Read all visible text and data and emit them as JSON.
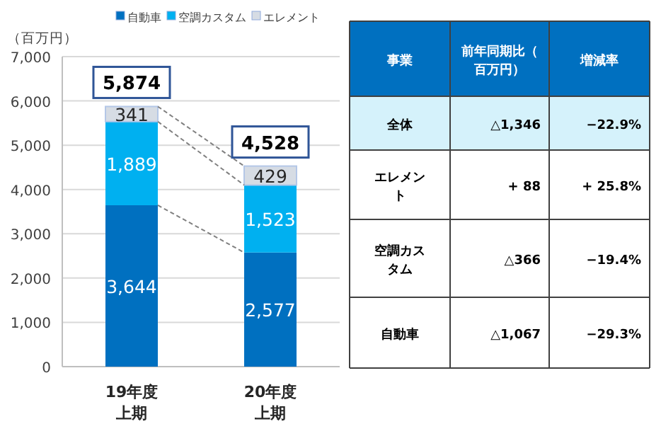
{
  "chart_data": [
    {
      "type": "bar",
      "stacked": true,
      "categories": [
        "19年度上期",
        "20年度上期"
      ],
      "series": [
        {
          "name": "自動車",
          "color": "#0070c0",
          "values": [
            3644,
            2577
          ],
          "value_labels": [
            "3,644",
            "2,577"
          ]
        },
        {
          "name": "空調カスタム",
          "color": "#00b0f0",
          "values": [
            1889,
            1523
          ],
          "value_labels": [
            "1,889",
            "1,523"
          ]
        },
        {
          "name": "エレメント",
          "color": "#d6dce4",
          "values": [
            341,
            429
          ],
          "value_labels": [
            "341",
            "429"
          ]
        }
      ],
      "totals": [
        "5,874",
        "4,528"
      ],
      "ylabel": "（百万円）",
      "ylim": [
        0,
        7000
      ],
      "yticks": [
        0,
        {
          "value": 1000,
          "label": "1,000"
        },
        {
          "value": 2000,
          "label": "2,000"
        },
        {
          "value": 3000,
          "label": "3,000"
        },
        {
          "value": 4000,
          "label": "4,000"
        },
        {
          "value": 5000,
          "label": "5,000"
        },
        {
          "value": 6000,
          "label": "6,000"
        },
        {
          "value": 7000,
          "label": "7,000"
        }
      ],
      "grid": "y",
      "legend": "top"
    },
    {
      "type": "other",
      "colors": [
        "#0070c0",
        "#d5f2fb",
        "#ffffff",
        "#ffffff",
        "#ffffff"
      ],
      "annotations": [
        "事業",
        "前年同期比（百万円）",
        "増減率",
        "全体",
        "△1,346",
        "−22.9%",
        "エレメント",
        "+ 88",
        "+ 25.8%",
        "空調カスタム",
        "△366",
        "−19.4%",
        "自動車",
        "△1,067",
        "−29.3%"
      ]
    }
  ]
}
